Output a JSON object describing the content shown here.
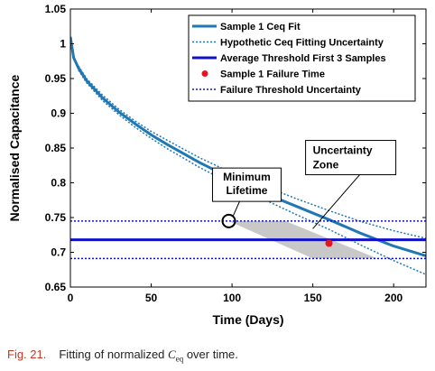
{
  "chart_data": {
    "type": "line",
    "title": "",
    "xlabel": "Time (Days)",
    "ylabel": "Normalised Capacitance",
    "xlim": [
      0,
      220
    ],
    "ylim": [
      0.65,
      1.05
    ],
    "xticks": [
      0,
      50,
      100,
      150,
      200
    ],
    "yticks": [
      0.65,
      0.7,
      0.75,
      0.8,
      0.85,
      0.9,
      0.95,
      1,
      1.05
    ],
    "xtick_labels": [
      "0",
      "50",
      "100",
      "150",
      "200"
    ],
    "ytick_labels": [
      "0.65",
      "0.7",
      "0.75",
      "0.8",
      "0.85",
      "0.9",
      "0.95",
      "1",
      "1.05"
    ],
    "grid": false,
    "legend_position": "top-right",
    "series": [
      {
        "name": "Sample 1 Ceq Fit",
        "style": "solid",
        "color": "#1f77b4",
        "x": [
          0,
          2,
          5,
          10,
          20,
          30,
          40,
          50,
          60,
          80,
          100,
          120,
          140,
          160,
          180,
          200,
          220
        ],
        "y": [
          1.01,
          0.98,
          0.965,
          0.947,
          0.922,
          0.902,
          0.885,
          0.869,
          0.855,
          0.829,
          0.806,
          0.785,
          0.766,
          0.747,
          0.727,
          0.709,
          0.695
        ]
      },
      {
        "name": "Hypothetic Ceq Fitting Uncertainty",
        "style": "dotted",
        "color": "#1f77b4",
        "x": [
          5,
          10,
          20,
          30,
          40,
          50,
          60,
          80,
          100,
          120,
          140,
          160,
          180,
          200,
          220
        ],
        "y": [
          0.968,
          0.95,
          0.926,
          0.906,
          0.889,
          0.874,
          0.861,
          0.836,
          0.814,
          0.795,
          0.777,
          0.76,
          0.744,
          0.731,
          0.72
        ]
      },
      {
        "name": "",
        "style": "dotted",
        "color": "#1f77b4",
        "x": [
          5,
          10,
          20,
          30,
          40,
          50,
          60,
          80,
          100,
          120,
          140,
          160,
          180,
          200,
          220
        ],
        "y": [
          0.962,
          0.944,
          0.918,
          0.898,
          0.88,
          0.864,
          0.849,
          0.822,
          0.798,
          0.776,
          0.754,
          0.733,
          0.71,
          0.688,
          0.668
        ]
      },
      {
        "name": "Average Threshold First 3 Samples",
        "style": "solid",
        "color": "#1010cc",
        "x": [
          0,
          220
        ],
        "y": [
          0.718,
          0.718
        ]
      },
      {
        "name": "Failure Threshold Uncertainty",
        "style": "dotted",
        "color": "#1010cc",
        "x": [
          0,
          220
        ],
        "y": [
          0.745,
          0.745
        ]
      },
      {
        "name": "",
        "style": "dotted",
        "color": "#1010cc",
        "x": [
          0,
          220
        ],
        "y": [
          0.691,
          0.691
        ]
      }
    ],
    "points": [
      {
        "name": "Sample 1 Failure Time",
        "x": 160,
        "y": 0.713,
        "color": "#e8141c"
      }
    ],
    "uncertainty_zone": {
      "color": "#c8c8c8",
      "polygon": [
        [
          98,
          0.745
        ],
        [
          133,
          0.745
        ],
        [
          190,
          0.691
        ],
        [
          150,
          0.691
        ]
      ]
    },
    "annotations": [
      {
        "text_lines": [
          "Minimum",
          "Lifetime"
        ],
        "x": 103,
        "y": 0.781,
        "arrow_to": [
          98,
          0.745
        ],
        "circle_at": [
          98,
          0.745
        ]
      },
      {
        "text_lines": [
          "Uncertainty",
          "Zone"
        ],
        "x": 155,
        "y": 0.822,
        "arrow_to": [
          150,
          0.734
        ]
      }
    ]
  },
  "caption": {
    "figure_label": "Fig. 21.",
    "text_before": "Fitting of normalized ",
    "math_symbol": "C",
    "math_subscript": "eq",
    "text_after": " over time."
  }
}
